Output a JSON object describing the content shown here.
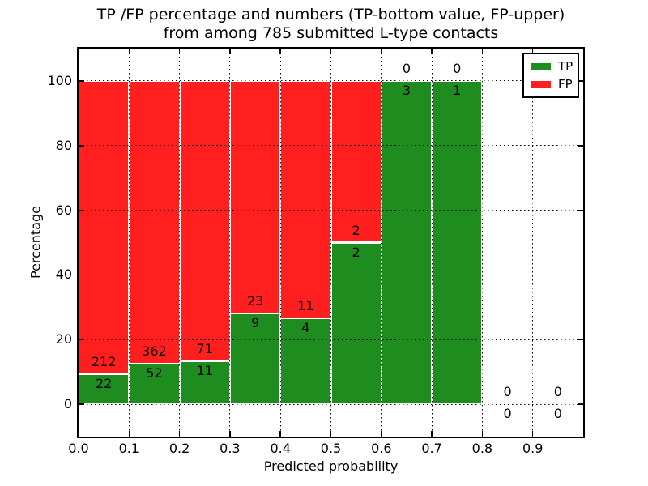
{
  "title": {
    "line1": "TP /FP percentage and numbers (TP-bottom value, FP-upper)",
    "line2": "from among 785 submitted L-type contacts"
  },
  "colors": {
    "tp": "#1e8c1e",
    "fp": "#ff1f1f",
    "grid": "#000000",
    "text": "#000000",
    "background": "#ffffff"
  },
  "chart_data": {
    "type": "bar",
    "stacked": true,
    "title": "TP /FP percentage and numbers (TP-bottom value, FP-upper)\nfrom among 785 submitted L-type contacts",
    "xlabel": "Predicted probability",
    "ylabel": "Percentage",
    "xlim": [
      0.0,
      1.0
    ],
    "ylim": [
      -10,
      110
    ],
    "xticks": [
      "0.0",
      "0.1",
      "0.2",
      "0.3",
      "0.4",
      "0.5",
      "0.6",
      "0.7",
      "0.8",
      "0.9"
    ],
    "yticks": [
      0,
      20,
      40,
      60,
      80,
      100
    ],
    "grid": {
      "visible": true,
      "style": "dotted",
      "color": "#000000"
    },
    "legend": {
      "position": "upper-right",
      "entries": [
        {
          "label": "TP",
          "color": "#1e8c1e"
        },
        {
          "label": "FP",
          "color": "#ff1f1f"
        }
      ]
    },
    "total_contacts": 785,
    "series": [
      {
        "name": "TP",
        "counts": [
          22,
          52,
          11,
          9,
          4,
          2,
          3,
          1,
          0,
          0
        ]
      },
      {
        "name": "FP",
        "counts": [
          212,
          362,
          71,
          23,
          11,
          2,
          0,
          0,
          0,
          0
        ]
      }
    ],
    "bins": [
      {
        "x_start": 0.0,
        "x_end": 0.1,
        "tp": 22,
        "fp": 212,
        "tp_pct": 9.4,
        "fp_pct": 90.6
      },
      {
        "x_start": 0.1,
        "x_end": 0.2,
        "tp": 52,
        "fp": 362,
        "tp_pct": 12.56,
        "fp_pct": 87.44
      },
      {
        "x_start": 0.2,
        "x_end": 0.3,
        "tp": 11,
        "fp": 71,
        "tp_pct": 13.41,
        "fp_pct": 86.59
      },
      {
        "x_start": 0.3,
        "x_end": 0.4,
        "tp": 9,
        "fp": 23,
        "tp_pct": 28.13,
        "fp_pct": 71.87
      },
      {
        "x_start": 0.4,
        "x_end": 0.5,
        "tp": 4,
        "fp": 11,
        "tp_pct": 26.67,
        "fp_pct": 73.33
      },
      {
        "x_start": 0.5,
        "x_end": 0.6,
        "tp": 2,
        "fp": 2,
        "tp_pct": 50.0,
        "fp_pct": 50.0
      },
      {
        "x_start": 0.6,
        "x_end": 0.7,
        "tp": 3,
        "fp": 0,
        "tp_pct": 100.0,
        "fp_pct": 0.0
      },
      {
        "x_start": 0.7,
        "x_end": 0.8,
        "tp": 1,
        "fp": 0,
        "tp_pct": 100.0,
        "fp_pct": 0.0
      },
      {
        "x_start": 0.8,
        "x_end": 0.9,
        "tp": 0,
        "fp": 0,
        "tp_pct": 0.0,
        "fp_pct": 0.0
      },
      {
        "x_start": 0.9,
        "x_end": 1.0,
        "tp": 0,
        "fp": 0,
        "tp_pct": 0.0,
        "fp_pct": 0.0
      }
    ]
  }
}
